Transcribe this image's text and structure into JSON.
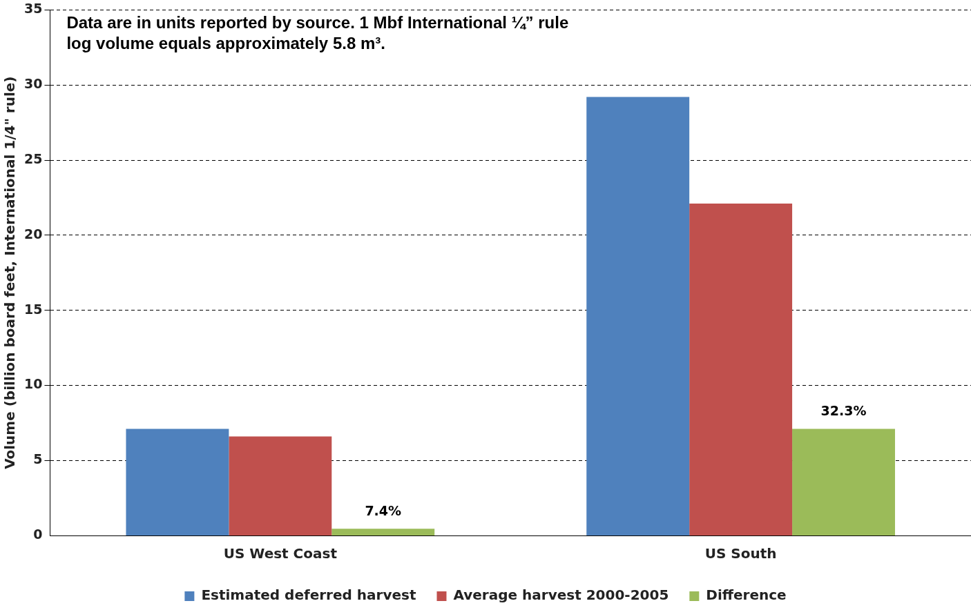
{
  "chart_data": {
    "type": "bar",
    "ylabel": "Volume (billion board feet, International 1/4\" rule)",
    "categories": [
      "US West Coast",
      "US South"
    ],
    "series": [
      {
        "name": "Estimated deferred harvest",
        "color": "#4f81bd",
        "values": [
          7.1,
          29.2
        ]
      },
      {
        "name": "Average harvest 2000-2005",
        "color": "#c0504d",
        "values": [
          6.6,
          22.1
        ]
      },
      {
        "name": "Difference",
        "color": "#9bbb59",
        "values": [
          0.45,
          7.1
        ]
      }
    ],
    "ylim": [
      0,
      35
    ],
    "yticks": [
      0,
      5,
      10,
      15,
      20,
      25,
      30,
      35
    ],
    "grid": "y",
    "legend": "bottom",
    "annotations": [
      "7.4%",
      "32.3%",
      "Data are in units reported by source. 1 Mbf International ¼” rule log volume equals approximately 5.8 m³."
    ]
  }
}
